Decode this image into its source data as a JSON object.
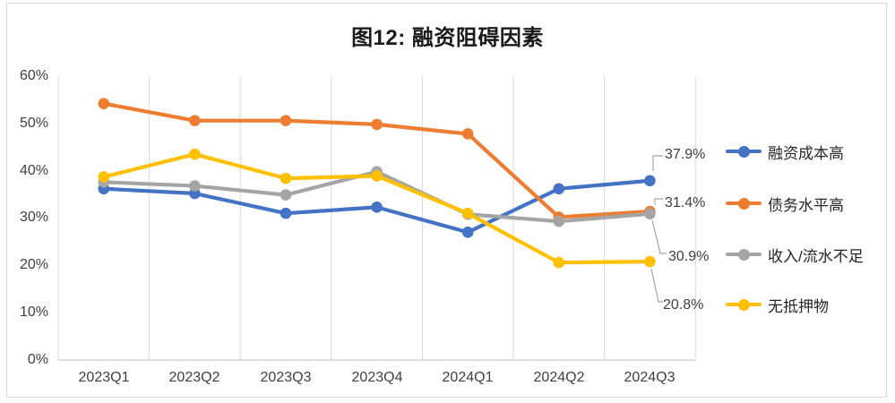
{
  "figure": {
    "title": "图12: 融资阻碍因素"
  },
  "chart_data": {
    "type": "line",
    "title": "图12: 融资阻碍因素",
    "categories": [
      "2023Q1",
      "2023Q2",
      "2023Q3",
      "2023Q4",
      "2024Q1",
      "2024Q2",
      "2024Q3"
    ],
    "series": [
      {
        "name": "融资成本高",
        "color": "#4472C4",
        "values": [
          36.2,
          35.2,
          31.0,
          32.3,
          27.0,
          36.2,
          37.9
        ]
      },
      {
        "name": "债务水平高",
        "color": "#ED7D31",
        "values": [
          54.2,
          50.6,
          50.6,
          49.8,
          47.8,
          30.2,
          31.4
        ]
      },
      {
        "name": "收入/流水不足",
        "color": "#A5A5A5",
        "values": [
          37.6,
          36.8,
          34.9,
          39.8,
          30.8,
          29.3,
          30.9
        ]
      },
      {
        "name": "无抵押物",
        "color": "#FFC000",
        "values": [
          38.7,
          43.5,
          38.4,
          38.9,
          31.0,
          20.6,
          20.8
        ]
      }
    ],
    "end_labels": [
      "37.9%",
      "31.4%",
      "30.9%",
      "20.8%"
    ],
    "y_ticks": [
      "60%",
      "50%",
      "40%",
      "30%",
      "20%",
      "10%",
      "0%"
    ],
    "ylim": [
      0,
      60
    ],
    "xlabel": "",
    "ylabel": "",
    "grid": "vertical-only",
    "legend_position": "right",
    "colors": {
      "gridline": "#d9d9d9",
      "axis_line": "#c9c9c9",
      "leader_line": "#a6a6a6",
      "tick_text": "#404040"
    }
  }
}
